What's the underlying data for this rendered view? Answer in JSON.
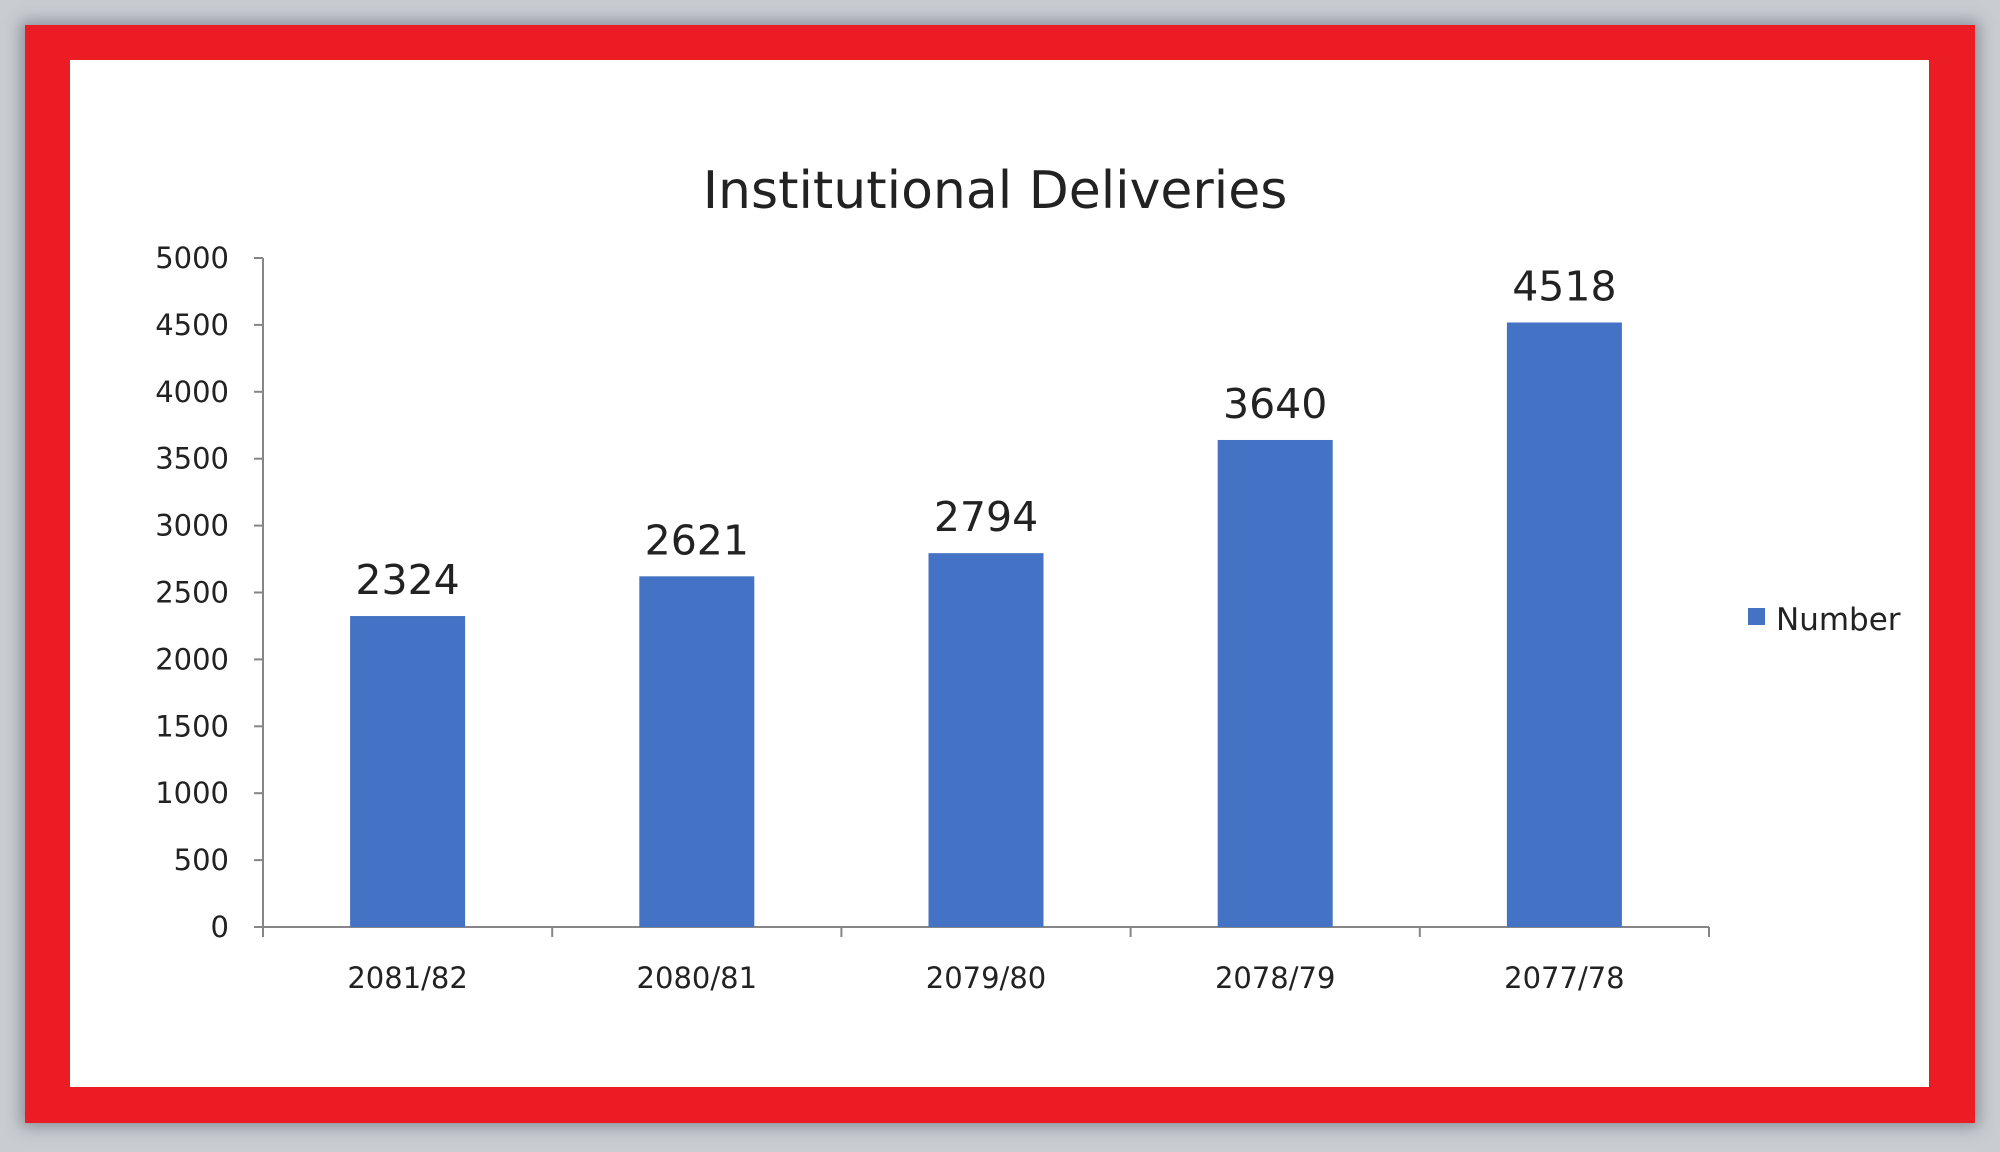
{
  "chart_data": {
    "type": "bar",
    "title": "Institutional Deliveries",
    "categories": [
      "2081/82",
      "2080/81",
      "2079/80",
      "2078/79",
      "2077/78"
    ],
    "series": [
      {
        "name": "Number",
        "values": [
          2324,
          2621,
          2794,
          3640,
          4518
        ],
        "color": "#4472c4"
      }
    ],
    "data_labels": [
      "2324",
      "2621",
      "2794",
      "3640",
      "4518"
    ],
    "yticks": [
      "0",
      "500",
      "1000",
      "1500",
      "2000",
      "2500",
      "3000",
      "3500",
      "4000",
      "4500",
      "5000"
    ],
    "ylim": [
      0,
      5000
    ],
    "xlabel": "",
    "ylabel": "",
    "grid": false,
    "legend": "right"
  },
  "frame_color": "#ec1c24"
}
